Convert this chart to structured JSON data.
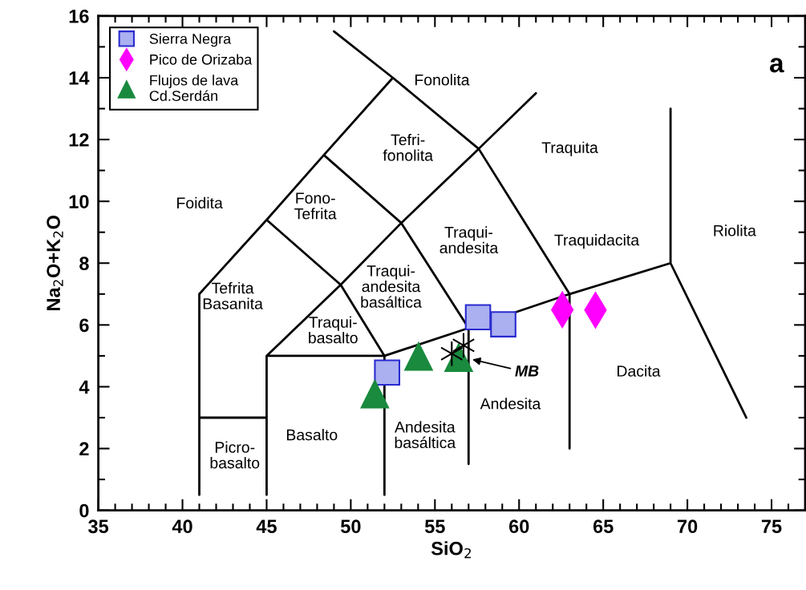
{
  "chart_data": {
    "type": "scatter",
    "xlabel": "SiO$_{2}$",
    "ylabel": "Na$_{2}$O+K$_{2}$O",
    "xlim": [
      35,
      77
    ],
    "ylim": [
      0,
      16
    ],
    "xticks": [
      35,
      40,
      45,
      50,
      55,
      60,
      65,
      70,
      75
    ],
    "yticks": [
      0,
      2,
      4,
      6,
      8,
      10,
      12,
      14,
      16
    ],
    "grid": false,
    "legend": "top left",
    "series": [
      {
        "name": "Sierra Negra",
        "color": "#aab0f0",
        "marker": "square",
        "x": [
          52.16,
          57.56,
          59.06
        ],
        "values": [
          4.46,
          6.25,
          6.02
        ]
      },
      {
        "name": "Pico de Orizaba",
        "color": "#ff00ff",
        "marker": "diamond",
        "x": [
          62.57,
          64.54
        ],
        "values": [
          6.49,
          6.48
        ]
      },
      {
        "name": "Flujos de lava\nCd.Serdán",
        "color": "#1a8a3e",
        "marker": "triangle",
        "x": [
          51.43,
          54.03,
          56.41
        ],
        "values": [
          3.76,
          4.98,
          4.94
        ]
      },
      {
        "color": "#000000",
        "marker": "cross",
        "x": [
          56.7,
          56.0
        ],
        "values": [
          5.34,
          5.07
        ]
      },
      {
        "type": "line",
        "color": "#000000",
        "marker": "none",
        "x": [
          41,
          41,
          null,
          41,
          45,
          null,
          45,
          45,
          52,
          57,
          63,
          69,
          null,
          52,
          52,
          null,
          57,
          57,
          null,
          63,
          63,
          null,
          69,
          69,
          null,
          69,
          73.5,
          null,
          41,
          45,
          48.4,
          52.5,
          57.6,
          63,
          null,
          49,
          52.5,
          null,
          57.6,
          61,
          null,
          45,
          49.4,
          53,
          57.6,
          null,
          45,
          49.4,
          52,
          null,
          48.4,
          53,
          57
        ],
        "values": [
          0.5,
          7,
          null,
          3,
          3,
          null,
          0.5,
          5,
          5,
          5.9,
          7,
          8,
          null,
          0.5,
          5,
          null,
          1.5,
          5.9,
          null,
          2,
          7,
          null,
          13,
          8,
          null,
          8,
          3,
          null,
          7,
          9.4,
          11.5,
          14,
          11.7,
          7,
          null,
          15.5,
          14,
          null,
          11.7,
          13.5,
          null,
          5,
          7.3,
          9.3,
          11.7,
          null,
          9.4,
          7.3,
          5,
          null,
          11.5,
          9.3,
          5.9
        ]
      }
    ],
    "annotations": [
      "Fonolita",
      "Tefri-\nfonolita",
      "Traquita",
      "Foidita",
      "Fono-\nTefrita",
      "Traqui-\nandesita",
      "Traquidacita",
      "Riolita",
      "Tefrita\nBasanita",
      "Traqui-\nandesita\nbasáltica",
      "Traqui-\nbasalto",
      "Dacita",
      "Andesita",
      "Andesita\nbasáltica",
      "Basalto",
      "Picro-\nbasalto",
      {
        "text": "MB",
        "x": 57.1,
        "y": 4.9
      },
      "a"
    ]
  }
}
